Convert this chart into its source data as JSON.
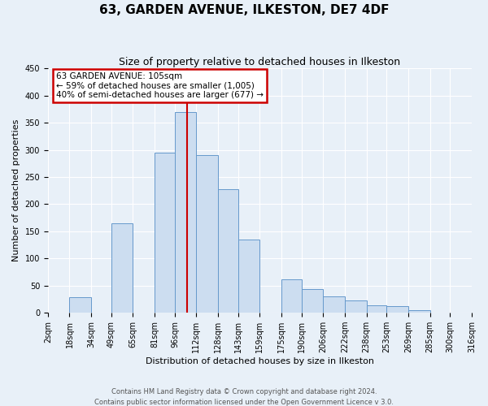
{
  "title": "63, GARDEN AVENUE, ILKESTON, DE7 4DF",
  "subtitle": "Size of property relative to detached houses in Ilkeston",
  "xlabel": "Distribution of detached houses by size in Ilkeston",
  "ylabel": "Number of detached properties",
  "bar_lefts": [
    2,
    18,
    34,
    49,
    65,
    81,
    96,
    112,
    128,
    143,
    159,
    175,
    190,
    206,
    222,
    238,
    253,
    269,
    285,
    300
  ],
  "bar_widths": [
    16,
    16,
    15,
    16,
    16,
    15,
    16,
    16,
    15,
    16,
    16,
    15,
    16,
    16,
    16,
    15,
    16,
    16,
    15,
    16
  ],
  "bar_heights": [
    0,
    28,
    0,
    165,
    0,
    295,
    370,
    290,
    228,
    135,
    0,
    62,
    43,
    30,
    23,
    14,
    12,
    5,
    0,
    0
  ],
  "tick_positions": [
    2,
    18,
    34,
    49,
    65,
    81,
    96,
    112,
    128,
    143,
    159,
    175,
    190,
    206,
    222,
    238,
    253,
    269,
    285,
    300,
    316
  ],
  "tick_labels": [
    "2sqm",
    "18sqm",
    "34sqm",
    "49sqm",
    "65sqm",
    "81sqm",
    "96sqm",
    "112sqm",
    "128sqm",
    "143sqm",
    "159sqm",
    "175sqm",
    "190sqm",
    "206sqm",
    "222sqm",
    "238sqm",
    "253sqm",
    "269sqm",
    "285sqm",
    "300sqm",
    "316sqm"
  ],
  "bar_color": "#ccddf0",
  "bar_edge_color": "#6699cc",
  "vline_x": 105,
  "vline_color": "#cc0000",
  "annotation_title": "63 GARDEN AVENUE: 105sqm",
  "annotation_line1": "← 59% of detached houses are smaller (1,005)",
  "annotation_line2": "40% of semi-detached houses are larger (677) →",
  "annotation_box_color": "#ffffff",
  "annotation_box_edge": "#cc0000",
  "ylim": [
    0,
    450
  ],
  "xlim": [
    2,
    316
  ],
  "yticks": [
    0,
    50,
    100,
    150,
    200,
    250,
    300,
    350,
    400,
    450
  ],
  "footer1": "Contains HM Land Registry data © Crown copyright and database right 2024.",
  "footer2": "Contains public sector information licensed under the Open Government Licence v 3.0.",
  "bg_color": "#e8f0f8",
  "grid_color": "#ffffff",
  "title_fontsize": 11,
  "subtitle_fontsize": 9,
  "axis_label_fontsize": 8,
  "tick_fontsize": 7,
  "footer_fontsize": 6
}
